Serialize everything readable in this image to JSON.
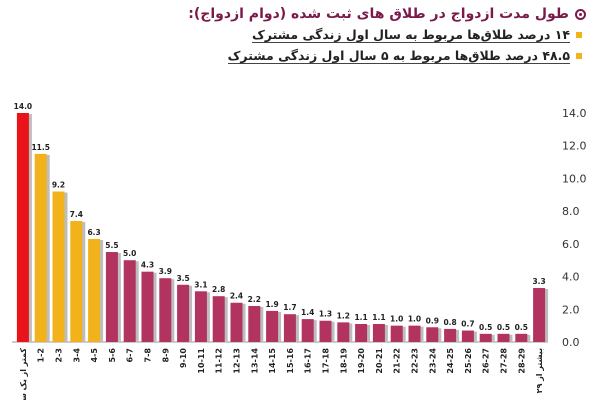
{
  "header": {
    "title": "طول مدت ازدواج در طلاق های ثبت شده (دوام ازدواج):",
    "notes": [
      "۱۴ درصد طلاق‌ها مربوط به سال اول زندگی مشترک",
      "۴۸.۵ درصد طلاق‌ها مربوط به ۵ سال اول زندگی مشترک"
    ]
  },
  "chart_data": {
    "type": "bar",
    "categories": [
      "کمتر از یک سال",
      "1-2",
      "2-3",
      "3-4",
      "4-5",
      "5-6",
      "6-7",
      "7-8",
      "8-9",
      "9-10",
      "10-11",
      "11-12",
      "12-13",
      "13-14",
      "14-15",
      "15-16",
      "16-17",
      "17-18",
      "18-19",
      "19-20",
      "20-21",
      "21-22",
      "22-23",
      "23-24",
      "24-25",
      "25-26",
      "26-27",
      "27-28",
      "28-29",
      "بیشتر از ۲۹"
    ],
    "values": [
      14.0,
      11.5,
      9.2,
      7.4,
      6.3,
      5.5,
      5.0,
      4.3,
      3.9,
      3.5,
      3.1,
      2.8,
      2.4,
      2.2,
      1.9,
      1.7,
      1.4,
      1.3,
      1.2,
      1.1,
      1.1,
      1.0,
      1.0,
      0.9,
      0.8,
      0.7,
      0.5,
      0.5,
      0.5,
      3.3
    ],
    "value_labels": [
      "14.0",
      "11.5",
      "9.2",
      "7.4",
      "6.3",
      "5.5",
      "5.0",
      "4.3",
      "3.9",
      "3.5",
      "3.1",
      "2.8",
      "2.4",
      "2.2",
      "1.9",
      "1.7",
      "1.4",
      "1.3",
      "1.2",
      "1.1",
      "1.1",
      "1.0",
      "1.0",
      "0.9",
      "0.8",
      "0.7",
      "0.5",
      "0.5",
      "0.5",
      "3.3"
    ],
    "bar_colors": [
      "#e8141a",
      "#f2b21b",
      "#f2b21b",
      "#f2b21b",
      "#f2b21b",
      "#b2335f",
      "#b2335f",
      "#b2335f",
      "#b2335f",
      "#b2335f",
      "#b2335f",
      "#b2335f",
      "#b2335f",
      "#b2335f",
      "#b2335f",
      "#b2335f",
      "#b2335f",
      "#b2335f",
      "#b2335f",
      "#b2335f",
      "#b2335f",
      "#b2335f",
      "#b2335f",
      "#b2335f",
      "#b2335f",
      "#b2335f",
      "#b2335f",
      "#b2335f",
      "#b2335f",
      "#b2335f"
    ],
    "ylim": [
      0,
      14
    ],
    "yticks": [
      "0.0",
      "2.0",
      "4.0",
      "6.0",
      "8.0",
      "10.0",
      "12.0",
      "14.0"
    ],
    "ytick_values": [
      0,
      2,
      4,
      6,
      8,
      10,
      12,
      14
    ],
    "y_axis_side": "right",
    "grid": false
  }
}
